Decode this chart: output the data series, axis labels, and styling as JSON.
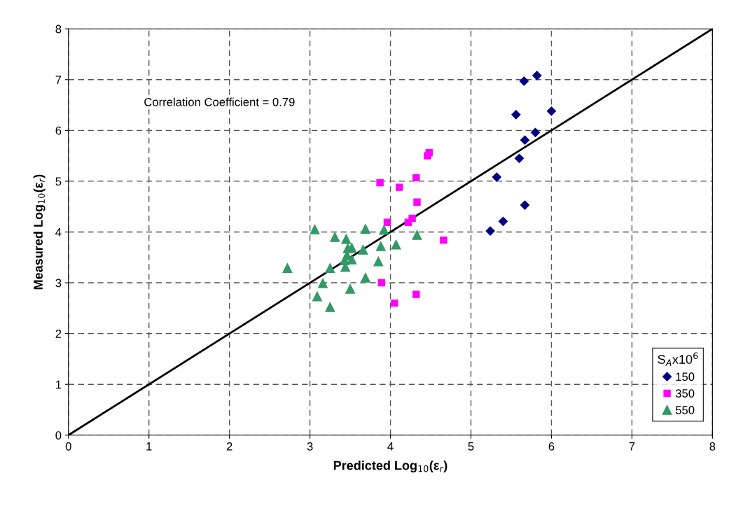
{
  "chart_data": {
    "type": "scatter",
    "xlabel": "Predicted Log$_{10}$(ε$_{r}$)",
    "ylabel": "Measured Log$_{10}$(ε$_{r}$)",
    "legend_title": "S$_{A}$x10$^{6}$",
    "annotations": [
      "Correlation Coefficient = 0.79"
    ],
    "xlim": [
      0,
      8
    ],
    "ylim": [
      0,
      8
    ],
    "xticks": [
      0,
      1,
      2,
      3,
      4,
      5,
      6,
      7,
      8
    ],
    "yticks": [
      0,
      1,
      2,
      3,
      4,
      5,
      6,
      7,
      8
    ],
    "grid": true,
    "legend": "bottom right",
    "series": [
      {
        "name": "150",
        "color": "#000080",
        "marker": "diamond",
        "x": [
          5.66,
          5.82,
          5.56,
          6.0,
          5.8,
          5.67,
          5.6,
          5.32,
          5.67,
          5.4,
          5.24
        ],
        "values": [
          6.97,
          7.08,
          6.31,
          6.38,
          5.96,
          5.81,
          5.45,
          5.08,
          4.53,
          4.21,
          4.02
        ]
      },
      {
        "name": "350",
        "color": "#ff00ff",
        "marker": "square",
        "x": [
          4.48,
          4.46,
          3.87,
          4.11,
          4.32,
          4.33,
          3.96,
          4.22,
          4.27,
          4.66,
          3.89,
          4.05,
          4.32
        ],
        "values": [
          5.56,
          5.5,
          4.97,
          4.88,
          5.07,
          4.59,
          4.19,
          4.19,
          4.27,
          3.84,
          3.0,
          2.6,
          2.77
        ]
      },
      {
        "name": "550",
        "color": "#339966",
        "marker": "triangle",
        "x": [
          3.06,
          3.69,
          3.92,
          3.31,
          3.45,
          4.33,
          3.47,
          3.52,
          3.66,
          3.88,
          4.07,
          3.46,
          3.43,
          3.52,
          3.85,
          2.72,
          3.25,
          3.44,
          3.69,
          3.16,
          3.5,
          3.09,
          3.25
        ],
        "values": [
          4.05,
          4.06,
          4.04,
          3.9,
          3.86,
          3.94,
          3.68,
          3.69,
          3.65,
          3.72,
          3.75,
          3.54,
          3.44,
          3.46,
          3.42,
          3.29,
          3.29,
          3.31,
          3.1,
          2.99,
          2.88,
          2.73,
          2.52
        ]
      },
      {
        "type": "line",
        "color": "#000000",
        "marker": "none",
        "line_style": "solid",
        "x": [
          0,
          8
        ],
        "values": [
          0,
          8
        ]
      }
    ]
  }
}
